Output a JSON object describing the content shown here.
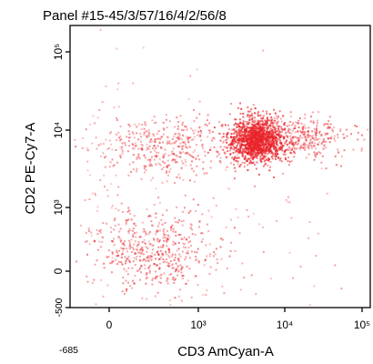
{
  "chart_data": {
    "type": "scatter",
    "title": "Panel #15-45/3/57/16/4/2/56/8",
    "xlabel": "CD3 AmCyan-A",
    "ylabel": "CD2 PE-Cy7-A",
    "x_scale": "biexponential",
    "y_scale": "biexponential",
    "xlim": [
      -685,
      150000
    ],
    "ylim": [
      -500,
      150000
    ],
    "x_ticks": [
      {
        "value": 0,
        "label": "0"
      },
      {
        "value": 1000,
        "label": "10³"
      },
      {
        "value": 10000,
        "label": "10⁴"
      },
      {
        "value": 100000,
        "label": "10⁵"
      }
    ],
    "x_min_label": "-685",
    "y_ticks": [
      {
        "value": -500,
        "label": "-500"
      },
      {
        "value": 0,
        "label": "0"
      },
      {
        "value": 1000,
        "label": "10³"
      },
      {
        "value": 10000,
        "label": "10⁴"
      },
      {
        "value": 100000,
        "label": "10⁵"
      }
    ],
    "point_color": "#e8232a",
    "populations": [
      {
        "x_center": 4500,
        "y_center": 7000,
        "density": "very high"
      },
      {
        "x_center": 20000,
        "y_center": 6000,
        "density": "medium"
      },
      {
        "x_center": 200,
        "y_center": 5500,
        "density": "medium"
      },
      {
        "x_center": 300,
        "y_center": 50,
        "density": "high"
      },
      {
        "x_center": 2500,
        "y_center": 300,
        "density": "sparse"
      }
    ],
    "grid": false,
    "legend": "none"
  }
}
